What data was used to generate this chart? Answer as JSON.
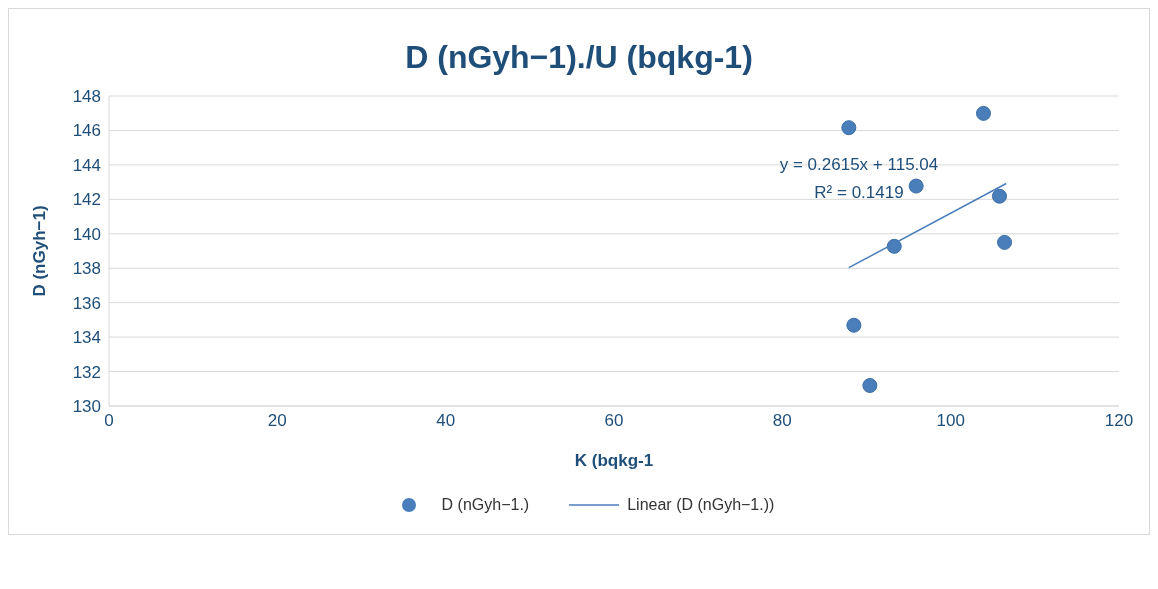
{
  "chart_data": {
    "type": "scatter",
    "title": "D (nGyh−1)./U (bqkg-1)",
    "xlabel": "K (bqkg-1",
    "ylabel": "D (nGyh−1)",
    "x": [
      87.9,
      103.9,
      95.9,
      105.8,
      93.3,
      106.4,
      88.5,
      90.4
    ],
    "series": [
      {
        "name": "D (nGyh−1.)",
        "color": "#4a7ebb",
        "values": [
          146.16,
          146.99,
          142.77,
          142.18,
          139.27,
          139.5,
          134.69,
          131.19
        ],
        "marker": "circle"
      },
      {
        "name": "Linear (D (nGyh−1.))",
        "type": "line",
        "color": "#4a7ebb",
        "x": [
          87.9,
          106.6
        ],
        "values": [
          138.03,
          142.92
        ]
      }
    ],
    "annotations": [
      "y = 0.2615x + 115.04",
      "R² = 0.1419"
    ],
    "xlim": [
      0,
      120
    ],
    "xticks": [
      0,
      20,
      40,
      60,
      80,
      100,
      120
    ],
    "ylim": [
      130,
      148
    ],
    "yticks": [
      130,
      132,
      134,
      136,
      138,
      140,
      142,
      144,
      146,
      148
    ],
    "grid": "y",
    "legend": "bottom"
  }
}
